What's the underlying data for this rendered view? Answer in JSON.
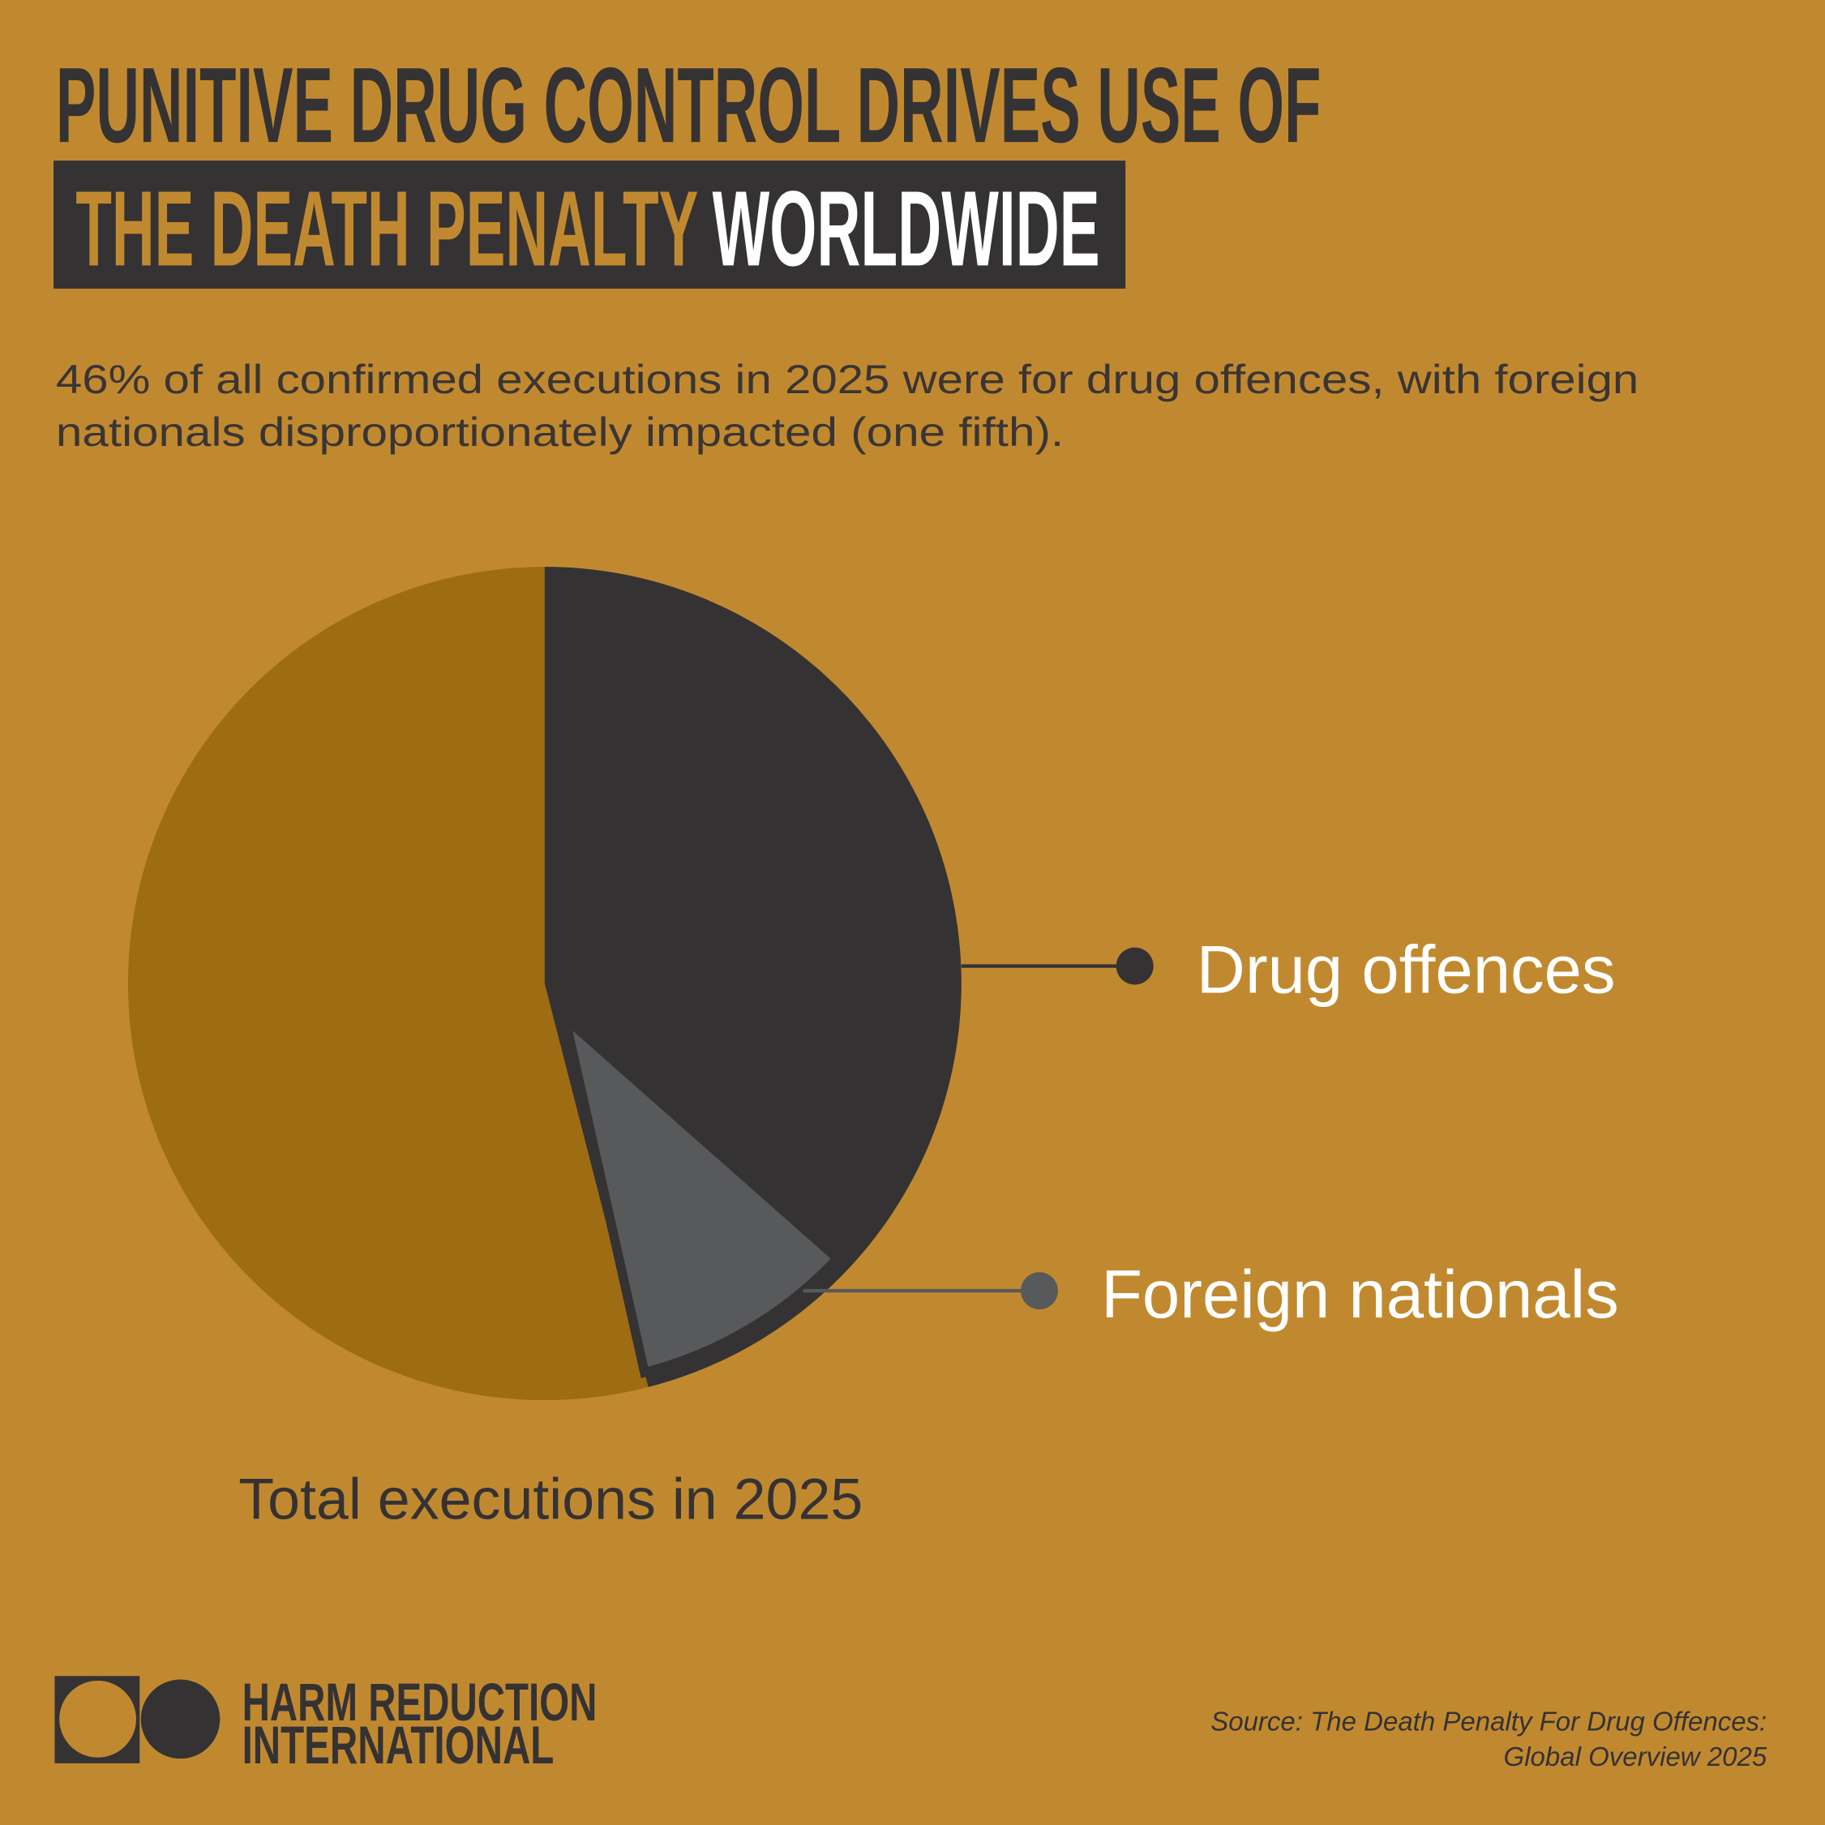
{
  "chart_data": {
    "type": "pie",
    "title": "PUNITIVE DRUG CONTROL DRIVES USE OF",
    "title_highlight": "THE DEATH PENALTY",
    "title_end": "WORLDWIDE",
    "subtitle": [
      "46% of all confirmed executions in 2025 were for drug offences, with foreign",
      "nationals disproportionately impacted (one fifth)."
    ],
    "categories": [
      "Drug offences",
      "Foreign nationals"
    ],
    "values": [
      46,
      9
    ],
    "colors": [
      "#353234",
      "#58595b"
    ],
    "total_label": "Total executions in 2025",
    "total_color": "#9e6c12",
    "logo": [
      "HARM REDUCTION",
      "INTERNATIONAL"
    ],
    "source": [
      "Source: The Death Penalty For Drug Offences:",
      "Global Overview 2025"
    ]
  }
}
